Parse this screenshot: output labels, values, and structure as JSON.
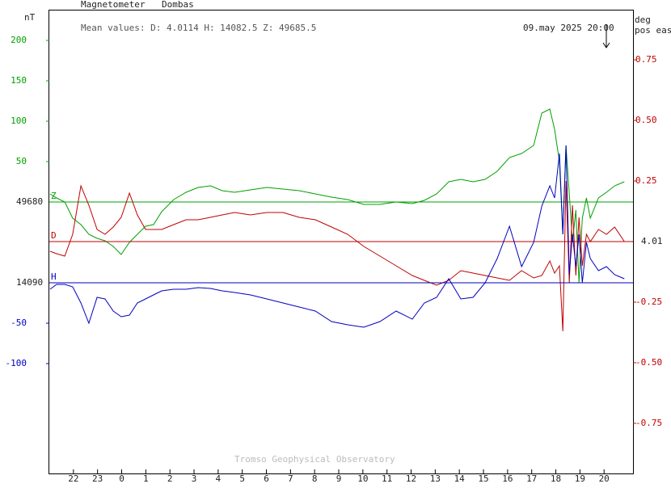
{
  "chart_data": {
    "type": "line",
    "title": "Magnetometer",
    "subtitle": "Dombas",
    "mean_values": "Mean values:  D: 4.0114   H: 14082.5   Z: 49685.5",
    "time_label": "09.may 2025 20:00",
    "source": "Tromso Geophysical Observatory",
    "y_label": "nT",
    "y2_label": [
      "deg",
      "pos east"
    ],
    "xlim": [
      0,
      24.2
    ],
    "xticks": [
      {
        "value": 1,
        "label": "22"
      },
      {
        "value": 2,
        "label": "23"
      },
      {
        "value": 3,
        "label": "0"
      },
      {
        "value": 4,
        "label": "1"
      },
      {
        "value": 5,
        "label": "2"
      },
      {
        "value": 6,
        "label": "3"
      },
      {
        "value": 7,
        "label": "4"
      },
      {
        "value": 8,
        "label": "5"
      },
      {
        "value": 9,
        "label": "6"
      },
      {
        "value": 10,
        "label": "7"
      },
      {
        "value": 11,
        "label": "8"
      },
      {
        "value": 12,
        "label": "9"
      },
      {
        "value": 13,
        "label": "10"
      },
      {
        "value": 14,
        "label": "11"
      },
      {
        "value": 15,
        "label": "12"
      },
      {
        "value": 16,
        "label": "13"
      },
      {
        "value": 17,
        "label": "14"
      },
      {
        "value": 18,
        "label": "15"
      },
      {
        "value": 19,
        "label": "16"
      },
      {
        "value": 20,
        "label": "17"
      },
      {
        "value": 21,
        "label": "18"
      },
      {
        "value": 22,
        "label": "19"
      },
      {
        "value": 23,
        "label": "20"
      }
    ],
    "x": [
      0.03,
      0.3,
      0.64,
      0.97,
      1.31,
      1.64,
      1.98,
      2.31,
      2.65,
      2.98,
      3.32,
      3.65,
      3.99,
      4.32,
      4.66,
      5.16,
      5.67,
      6.17,
      6.68,
      7.17,
      7.68,
      8.34,
      9.02,
      9.69,
      10.36,
      11.03,
      11.7,
      12.37,
      13.04,
      13.71,
      14.38,
      15.05,
      15.55,
      16.06,
      16.56,
      17.06,
      17.57,
      18.07,
      18.57,
      19.08,
      19.58,
      20.08,
      20.42,
      20.75,
      20.95,
      21.15,
      21.29,
      21.42,
      21.56,
      21.69,
      21.83,
      21.96,
      22.1,
      22.27,
      22.43,
      22.77,
      23.1,
      23.44,
      23.84
    ],
    "series": [
      {
        "name": "Z",
        "color": "#00a000",
        "baseline": 49680,
        "ylim": [
          -336,
          238
        ],
        "yticks": [
          200,
          150,
          100,
          50
        ],
        "values": [
          10,
          5,
          0,
          -20,
          -28,
          -40,
          -45,
          -48,
          -55,
          -65,
          -50,
          -40,
          -30,
          -28,
          -12,
          3,
          12,
          18,
          20,
          14,
          12,
          15,
          18,
          16,
          14,
          10,
          6,
          3,
          -3,
          -3,
          0,
          -2,
          2,
          10,
          25,
          28,
          25,
          28,
          38,
          55,
          60,
          70,
          110,
          115,
          90,
          50,
          -40,
          70,
          10,
          -50,
          -10,
          -100,
          -20,
          5,
          -20,
          5,
          12,
          20,
          25
        ]
      },
      {
        "name": "D",
        "color": "#c00000",
        "axis": "y2",
        "baseline": 4.01,
        "ylim": [
          -0.957,
          0.957
        ],
        "yticks": [
          0.75,
          {
            "value": 0.5,
            "label": "0.50"
          },
          0.25,
          -0.25,
          {
            "value": -0.5,
            "label": "-0.50"
          },
          -0.75
        ],
        "values": [
          -0.04,
          -0.05,
          -0.06,
          0.03,
          0.23,
          0.15,
          0.05,
          0.03,
          0.06,
          0.1,
          0.2,
          0.11,
          0.05,
          0.05,
          0.05,
          0.07,
          0.09,
          0.09,
          0.1,
          0.11,
          0.12,
          0.11,
          0.12,
          0.12,
          0.1,
          0.09,
          0.06,
          0.03,
          -0.02,
          -0.06,
          -0.1,
          -0.14,
          -0.16,
          -0.18,
          -0.16,
          -0.12,
          -0.13,
          -0.14,
          -0.15,
          -0.16,
          -0.12,
          -0.15,
          -0.14,
          -0.08,
          -0.13,
          -0.1,
          -0.37,
          0.25,
          -0.17,
          0.15,
          -0.14,
          0.1,
          -0.1,
          0.03,
          0.0,
          0.05,
          0.03,
          0.06,
          0.0
        ]
      },
      {
        "name": "H",
        "color": "#0000c0",
        "baseline": 14090,
        "ylim": [
          -236,
          338
        ],
        "yticks": [
          -50,
          -100
        ],
        "values": [
          -8,
          -2,
          -2,
          -5,
          -25,
          -50,
          -18,
          -20,
          -35,
          -42,
          -40,
          -25,
          -20,
          -15,
          -10,
          -8,
          -8,
          -6,
          -7,
          -10,
          -12,
          -15,
          -20,
          -25,
          -30,
          -35,
          -48,
          -52,
          -55,
          -48,
          -35,
          -45,
          -25,
          -18,
          5,
          -20,
          -18,
          0,
          30,
          70,
          20,
          50,
          95,
          120,
          105,
          160,
          60,
          170,
          10,
          60,
          20,
          60,
          0,
          50,
          30,
          15,
          20,
          10,
          5
        ]
      }
    ]
  }
}
